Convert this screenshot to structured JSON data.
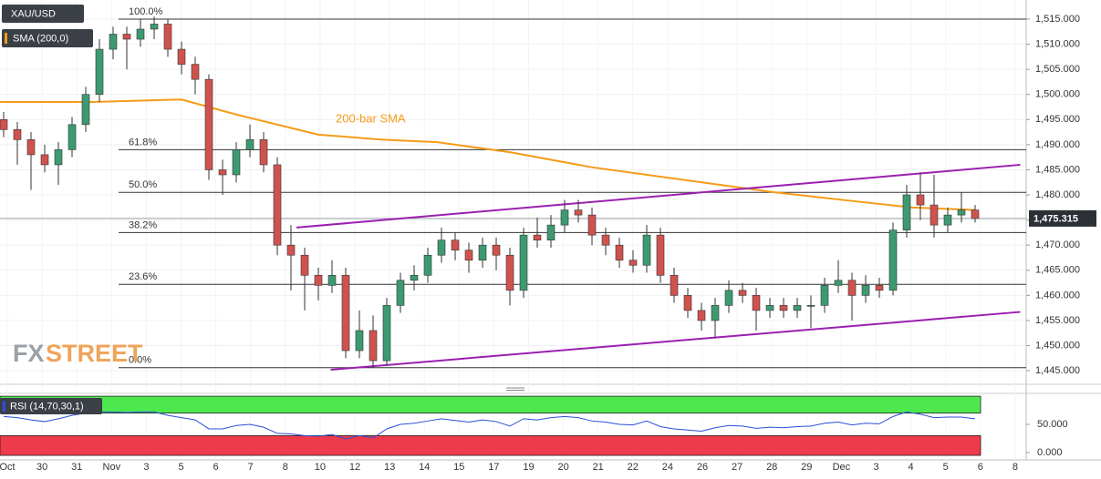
{
  "chart_data": {
    "type": "candlestick",
    "symbol": "XAU/USD",
    "indicator": "SMA (200,0)",
    "colors": {
      "up": "#3d9a70",
      "down": "#d0524e",
      "wick": "#333333",
      "sma": "#f59b18",
      "trend": "#9b1fb0"
    },
    "ylim": [
      1442.3,
      1518.8
    ],
    "yticks": [
      {
        "value": 1445,
        "label": "1,445.000"
      },
      {
        "value": 1450,
        "label": "1,450.000"
      },
      {
        "value": 1455,
        "label": "1,455.000"
      },
      {
        "value": 1460,
        "label": "1,460.000"
      },
      {
        "value": 1465,
        "label": "1,465.000"
      },
      {
        "value": 1470,
        "label": "1,470.000"
      },
      {
        "value": 1475,
        "label": "1,475.000"
      },
      {
        "value": 1480,
        "label": "1,480.000"
      },
      {
        "value": 1485,
        "label": "1,485.000"
      },
      {
        "value": 1490,
        "label": "1,490.000"
      },
      {
        "value": 1495,
        "label": "1,495.000"
      },
      {
        "value": 1500,
        "label": "1,500.000"
      },
      {
        "value": 1505,
        "label": "1,505.000"
      },
      {
        "value": 1510,
        "label": "1,510.000"
      },
      {
        "value": 1515,
        "label": "1,515.000"
      }
    ],
    "grid": true,
    "date_labels": [
      "Oct",
      "30",
      "31",
      "Nov",
      "3",
      "5",
      "6",
      "7",
      "8",
      "10",
      "12",
      "13",
      "14",
      "15",
      "17",
      "19",
      "20",
      "21",
      "22",
      "24",
      "26",
      "27",
      "28",
      "29",
      "Dec",
      "3",
      "4",
      "5",
      "6",
      "8"
    ],
    "ohlc": [
      [
        1495,
        1496.5,
        1491.5,
        1493
      ],
      [
        1493,
        1494.5,
        1486,
        1491
      ],
      [
        1491,
        1492.5,
        1481,
        1488
      ],
      [
        1488,
        1490,
        1484.5,
        1486
      ],
      [
        1486,
        1490.5,
        1482,
        1489
      ],
      [
        1489,
        1495.5,
        1487.5,
        1494
      ],
      [
        1494,
        1501.5,
        1492.5,
        1500
      ],
      [
        1500,
        1511,
        1498.5,
        1509
      ],
      [
        1509,
        1513.5,
        1507,
        1512
      ],
      [
        1512,
        1513.5,
        1505,
        1511
      ],
      [
        1511,
        1515,
        1509.5,
        1513
      ],
      [
        1513,
        1515.5,
        1511,
        1514
      ],
      [
        1514,
        1515,
        1507.5,
        1509
      ],
      [
        1509,
        1510.5,
        1504,
        1506
      ],
      [
        1506,
        1507.5,
        1500,
        1503
      ],
      [
        1503,
        1504,
        1483,
        1485
      ],
      [
        1485,
        1487,
        1480,
        1484
      ],
      [
        1484,
        1490.5,
        1482.5,
        1489
      ],
      [
        1489,
        1494,
        1487.5,
        1491
      ],
      [
        1491,
        1492.5,
        1484.5,
        1486
      ],
      [
        1486,
        1487.5,
        1468,
        1470
      ],
      [
        1470,
        1474,
        1461,
        1468
      ],
      [
        1468,
        1469.5,
        1457,
        1464
      ],
      [
        1464,
        1465.5,
        1459,
        1462
      ],
      [
        1462,
        1467,
        1460.5,
        1464
      ],
      [
        1464,
        1465.5,
        1447.5,
        1449
      ],
      [
        1449,
        1457,
        1447.5,
        1453
      ],
      [
        1453,
        1456,
        1445.5,
        1447
      ],
      [
        1447,
        1459.5,
        1446,
        1458
      ],
      [
        1458,
        1464.5,
        1456.5,
        1463
      ],
      [
        1463,
        1466,
        1461,
        1464
      ],
      [
        1464,
        1469.5,
        1462.5,
        1468
      ],
      [
        1468,
        1473.5,
        1466.5,
        1471
      ],
      [
        1471,
        1472.5,
        1467,
        1469
      ],
      [
        1469,
        1470.5,
        1464.5,
        1467
      ],
      [
        1467,
        1471.5,
        1465.5,
        1470
      ],
      [
        1470,
        1471.5,
        1465,
        1468
      ],
      [
        1468,
        1469.5,
        1458,
        1461
      ],
      [
        1461,
        1473.5,
        1459.5,
        1472
      ],
      [
        1472,
        1475.5,
        1469.5,
        1471
      ],
      [
        1471,
        1476,
        1469.5,
        1474
      ],
      [
        1474,
        1479,
        1472.5,
        1477
      ],
      [
        1477,
        1479,
        1474.5,
        1476
      ],
      [
        1476,
        1477.5,
        1470,
        1472
      ],
      [
        1472,
        1473.5,
        1468,
        1470
      ],
      [
        1470,
        1471.5,
        1465.5,
        1467
      ],
      [
        1467,
        1469,
        1464.5,
        1466
      ],
      [
        1466,
        1474,
        1464.5,
        1472
      ],
      [
        1472,
        1473.5,
        1462.5,
        1464
      ],
      [
        1464,
        1465.5,
        1458.5,
        1460
      ],
      [
        1460,
        1461.5,
        1455.5,
        1457
      ],
      [
        1457,
        1458.5,
        1453,
        1455
      ],
      [
        1455,
        1459.5,
        1451.5,
        1458
      ],
      [
        1458,
        1463,
        1456.5,
        1461
      ],
      [
        1461,
        1462.5,
        1458.5,
        1460
      ],
      [
        1460,
        1461.5,
        1453,
        1457
      ],
      [
        1457,
        1459.5,
        1455.5,
        1458
      ],
      [
        1458,
        1459.5,
        1455.5,
        1457
      ],
      [
        1457,
        1459.5,
        1455.5,
        1458
      ],
      [
        1458,
        1460,
        1453.5,
        1458
      ],
      [
        1458,
        1463.5,
        1456.5,
        1462
      ],
      [
        1462,
        1467,
        1460.5,
        1463
      ],
      [
        1463,
        1464.5,
        1455,
        1460
      ],
      [
        1460,
        1464,
        1458.5,
        1462
      ],
      [
        1462,
        1463.5,
        1459.5,
        1461
      ],
      [
        1461,
        1474.5,
        1460,
        1473
      ],
      [
        1473,
        1482,
        1471.5,
        1480
      ],
      [
        1480,
        1484.5,
        1475,
        1478
      ],
      [
        1478,
        1484,
        1471.5,
        1474
      ],
      [
        1474,
        1477.5,
        1472.5,
        1476
      ],
      [
        1476,
        1480.5,
        1474.5,
        1477
      ],
      [
        1477,
        1478,
        1474.5,
        1475.315
      ]
    ],
    "sma": {
      "label": "200-bar SMA",
      "x": [
        -0.3,
        6.4,
        13,
        17,
        23,
        27.7,
        31.7,
        37,
        43,
        49.7,
        56.4,
        63,
        66.4,
        71
      ],
      "values": [
        1498.5,
        1498.5,
        1499,
        1496,
        1492,
        1491,
        1490.5,
        1488.5,
        1485.5,
        1483,
        1480.5,
        1478.5,
        1477.5,
        1477
      ]
    },
    "fib_levels": [
      {
        "value": 1515,
        "label": "100.0%"
      },
      {
        "value": 1489,
        "label": "61.8%"
      },
      {
        "value": 1480.5,
        "label": "50.0%"
      },
      {
        "value": 1472.5,
        "label": "38.2%"
      },
      {
        "value": 1462.2,
        "label": "23.6%"
      },
      {
        "value": 1445.6,
        "label": "0.0%"
      }
    ],
    "trendlines": [
      {
        "x": [
          21.4,
          74.3
        ],
        "values": [
          1473.5,
          1486
        ]
      },
      {
        "x": [
          23.9,
          74.3
        ],
        "values": [
          1445.2,
          1456.7
        ]
      }
    ],
    "last_price": {
      "value": 1475.315,
      "label": "1,475.315"
    },
    "logo": [
      "FX",
      "STREET"
    ],
    "rsi": {
      "label": "RSI (14,70,30,1)",
      "color": "#2b4fd8",
      "ylim": [
        -13,
        105
      ],
      "yticks": [
        {
          "value": 50,
          "label": "50.000"
        },
        {
          "value": 0,
          "label": "0.000"
        }
      ],
      "bands": [
        {
          "range": [
            70,
            100
          ],
          "color": "#4ee84e"
        },
        {
          "range": [
            -5,
            30
          ],
          "color": "#ee3b4b"
        }
      ],
      "values": [
        64,
        62,
        58,
        55,
        60,
        66,
        70,
        72,
        72,
        71,
        72,
        72,
        66,
        62,
        58,
        42,
        42,
        48,
        50,
        45,
        34,
        33,
        30,
        29,
        32,
        24,
        30,
        26,
        42,
        50,
        52,
        56,
        60,
        57,
        54,
        58,
        55,
        47,
        60,
        58,
        62,
        64,
        62,
        56,
        54,
        50,
        49,
        56,
        46,
        42,
        40,
        38,
        44,
        48,
        47,
        43,
        45,
        44,
        46,
        47,
        52,
        54,
        49,
        52,
        51,
        64,
        72,
        68,
        62,
        63,
        63,
        60
      ]
    }
  }
}
